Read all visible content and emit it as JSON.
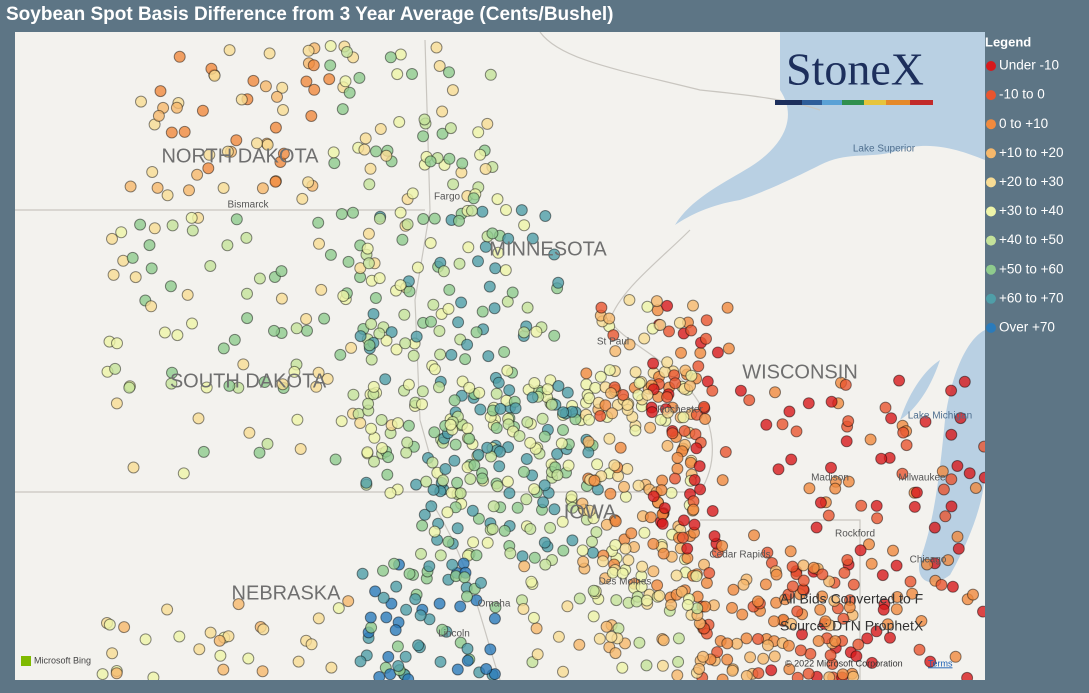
{
  "title": "Soybean Spot Basis Difference from 3 Year Average (Cents/Bushel)",
  "logo": "StoneX",
  "legend": {
    "title": "Legend",
    "items": [
      {
        "label": "Under -10",
        "color": "#d7191c"
      },
      {
        "label": "-10 to 0",
        "color": "#e9552f"
      },
      {
        "label": "0 to +10",
        "color": "#f08a3e"
      },
      {
        "label": "+10 to +20",
        "color": "#f6b86b"
      },
      {
        "label": "+20 to +30",
        "color": "#f8dc94"
      },
      {
        "label": "+30 to +40",
        "color": "#eef4a8"
      },
      {
        "label": "+40 to +50",
        "color": "#c4e29a"
      },
      {
        "label": "+50 to +60",
        "color": "#8fcb8d"
      },
      {
        "label": "+60 to +70",
        "color": "#4f9ea8"
      },
      {
        "label": "Over +70",
        "color": "#2b7bba"
      }
    ]
  },
  "states": [
    "NORTH DAKOTA",
    "MINNESOTA",
    "SOUTH DAKOTA",
    "WISCONSIN",
    "NEBRASKA",
    "IOWA"
  ],
  "places": [
    "Bismarck",
    "Fargo",
    "St Paul",
    "Rochester",
    "Madison",
    "Milwaukee",
    "Rockford",
    "Chicago",
    "Cedar Rapids",
    "Omaha",
    "Lincoln",
    "Des Moines",
    "Lake Superior",
    "Lake Michigan"
  ],
  "notes": [
    "All Bids Converted to F",
    "Source: DTN ProphetX"
  ],
  "attribution": {
    "copyright": "© 2022 Microsoft Corporation",
    "terms": "Terms",
    "bing": "Microsoft Bing"
  }
}
